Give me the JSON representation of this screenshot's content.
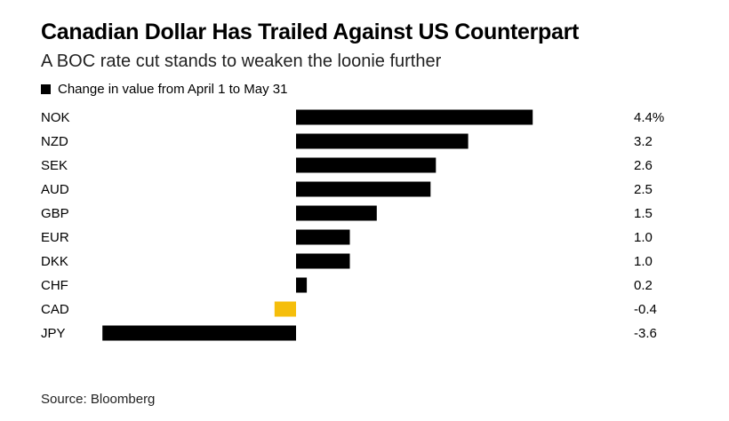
{
  "title": "Canadian Dollar Has Trailed Against US Counterpart",
  "subtitle": "A BOC rate cut stands to weaken the loonie further",
  "source": "Source: Bloomberg",
  "colors": {
    "default_bar": "#000000",
    "highlight_bar": "#F5BE0B"
  },
  "chart_data": {
    "type": "bar",
    "orientation": "horizontal",
    "title": "Canadian Dollar Has Trailed Against US Counterpart",
    "subtitle": "A BOC rate cut stands to weaken the loonie further",
    "legend": [
      "Change in value from April 1 to May 31"
    ],
    "legend_position": "top-left",
    "categories": [
      "NOK",
      "NZD",
      "SEK",
      "AUD",
      "GBP",
      "EUR",
      "DKK",
      "CHF",
      "CAD",
      "JPY"
    ],
    "values": [
      4.4,
      3.2,
      2.6,
      2.5,
      1.5,
      1.0,
      1.0,
      0.2,
      -0.4,
      -3.6
    ],
    "value_labels": [
      "4.4%",
      "3.2",
      "2.6",
      "2.5",
      "1.5",
      "1.0",
      "1.0",
      "0.2",
      "-0.4",
      "-3.6"
    ],
    "highlight": "CAD",
    "xlim": [
      -3.6,
      4.4
    ],
    "grid": false,
    "xlabel": "",
    "ylabel": ""
  }
}
